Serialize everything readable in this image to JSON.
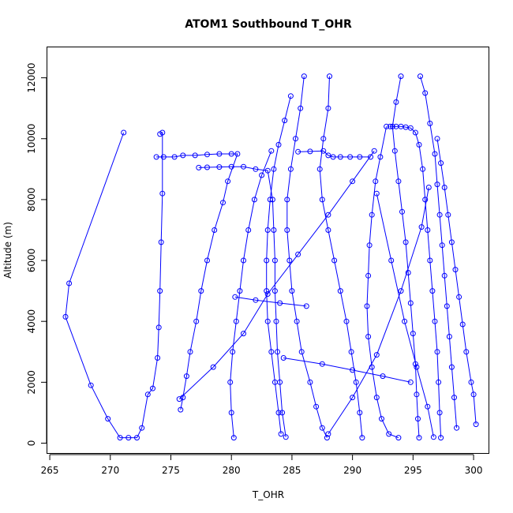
{
  "chart_data": {
    "type": "line",
    "title": "ATOM1 Southbound T_OHR",
    "xlabel": "T_OHR",
    "ylabel": "Altitude (m)",
    "xlim": [
      264.8,
      301.3
    ],
    "ylim": [
      -350,
      13000
    ],
    "x_ticks": [
      265,
      270,
      275,
      280,
      285,
      290,
      295,
      300
    ],
    "y_ticks": [
      0,
      2000,
      4000,
      6000,
      8000,
      10000,
      12000
    ],
    "grid": false,
    "legend": "none",
    "color": "#0000ff",
    "series": [
      {
        "points": [
          [
            271.1,
            10200
          ],
          [
            266.6,
            5250
          ],
          [
            266.3,
            4150
          ],
          [
            268.4,
            1900
          ],
          [
            269.8,
            800
          ],
          [
            270.8,
            180
          ],
          [
            271.5,
            180
          ],
          [
            272.2,
            180
          ],
          [
            272.6,
            500
          ],
          [
            273.1,
            1600
          ],
          [
            273.5,
            1800
          ],
          [
            273.9,
            2800
          ],
          [
            274.0,
            3800
          ],
          [
            274.1,
            5000
          ],
          [
            274.2,
            6600
          ],
          [
            274.3,
            8200
          ],
          [
            274.3,
            10200
          ],
          [
            274.1,
            10150
          ]
        ]
      },
      {
        "points": [
          [
            273.8,
            9400
          ],
          [
            274.4,
            9400
          ],
          [
            275.3,
            9400
          ],
          [
            276.0,
            9450
          ],
          [
            277.0,
            9450
          ],
          [
            278.0,
            9480
          ],
          [
            279.0,
            9500
          ],
          [
            280.0,
            9500
          ],
          [
            280.5,
            9500
          ],
          [
            279.7,
            8600
          ],
          [
            279.3,
            7900
          ],
          [
            278.6,
            7000
          ],
          [
            278.0,
            6000
          ],
          [
            277.5,
            5000
          ],
          [
            277.1,
            4000
          ],
          [
            276.6,
            3000
          ],
          [
            276.3,
            2200
          ],
          [
            276.0,
            1500
          ],
          [
            275.8,
            1100
          ]
        ]
      },
      {
        "points": [
          [
            277.3,
            9050
          ],
          [
            278.0,
            9060
          ],
          [
            279.0,
            9070
          ],
          [
            280.0,
            9080
          ],
          [
            281.0,
            9080
          ],
          [
            282.0,
            9000
          ],
          [
            283.0,
            8950
          ],
          [
            283.4,
            8000
          ],
          [
            283.5,
            7000
          ],
          [
            283.6,
            6000
          ],
          [
            283.6,
            5000
          ],
          [
            283.7,
            4000
          ],
          [
            283.8,
            3000
          ],
          [
            284.0,
            2000
          ],
          [
            284.2,
            1000
          ],
          [
            284.5,
            200
          ]
        ]
      },
      {
        "points": [
          [
            286.0,
            12050
          ],
          [
            285.7,
            11000
          ],
          [
            285.3,
            10000
          ],
          [
            284.9,
            9000
          ],
          [
            284.6,
            8000
          ],
          [
            284.6,
            7000
          ],
          [
            284.8,
            6000
          ],
          [
            285.0,
            5000
          ],
          [
            285.4,
            4000
          ],
          [
            285.8,
            3000
          ],
          [
            286.5,
            2000
          ],
          [
            287.0,
            1200
          ],
          [
            287.5,
            500
          ],
          [
            287.9,
            180
          ]
        ]
      },
      {
        "points": [
          [
            288.1,
            12050
          ],
          [
            288.0,
            11000
          ],
          [
            287.6,
            10000
          ],
          [
            287.3,
            9000
          ],
          [
            287.5,
            8000
          ],
          [
            288.0,
            7000
          ],
          [
            288.5,
            6000
          ],
          [
            289.0,
            5000
          ],
          [
            289.5,
            4000
          ],
          [
            289.9,
            3000
          ],
          [
            290.3,
            2000
          ],
          [
            290.6,
            1000
          ],
          [
            290.8,
            180
          ]
        ]
      },
      {
        "points": [
          [
            291.5,
            9400
          ],
          [
            290.6,
            9400
          ],
          [
            289.8,
            9400
          ],
          [
            289.0,
            9400
          ],
          [
            288.4,
            9400
          ],
          [
            288.0,
            9450
          ],
          [
            287.6,
            9600
          ],
          [
            286.5,
            9580
          ],
          [
            285.5,
            9570
          ]
        ]
      },
      {
        "points": [
          [
            292.8,
            10400
          ],
          [
            292.3,
            9400
          ],
          [
            291.9,
            8600
          ],
          [
            291.6,
            7500
          ],
          [
            291.4,
            6500
          ],
          [
            291.3,
            5500
          ],
          [
            291.2,
            4500
          ],
          [
            291.3,
            3500
          ],
          [
            291.6,
            2500
          ],
          [
            292.0,
            1500
          ],
          [
            292.4,
            800
          ],
          [
            293.0,
            300
          ],
          [
            293.8,
            180
          ]
        ]
      },
      {
        "points": [
          [
            294.0,
            12050
          ],
          [
            293.6,
            11200
          ],
          [
            293.3,
            10400
          ],
          [
            293.5,
            9600
          ],
          [
            293.8,
            8600
          ],
          [
            294.1,
            7600
          ],
          [
            294.4,
            6600
          ],
          [
            294.6,
            5600
          ],
          [
            294.8,
            4600
          ],
          [
            295.0,
            3600
          ],
          [
            295.2,
            2600
          ],
          [
            295.3,
            1600
          ],
          [
            295.4,
            800
          ],
          [
            295.5,
            180
          ]
        ]
      },
      {
        "points": [
          [
            293.1,
            10400
          ],
          [
            293.6,
            10400
          ],
          [
            294.0,
            10400
          ],
          [
            294.4,
            10380
          ],
          [
            294.8,
            10350
          ],
          [
            295.2,
            10200
          ],
          [
            295.5,
            9800
          ],
          [
            295.8,
            9000
          ],
          [
            296.0,
            8000
          ],
          [
            296.2,
            7000
          ],
          [
            296.4,
            6000
          ],
          [
            296.6,
            5000
          ],
          [
            296.8,
            4000
          ],
          [
            297.0,
            3000
          ],
          [
            297.1,
            2000
          ],
          [
            297.2,
            1000
          ],
          [
            297.3,
            180
          ]
        ]
      },
      {
        "points": [
          [
            295.6,
            12050
          ],
          [
            296.0,
            11500
          ],
          [
            296.4,
            10500
          ],
          [
            296.8,
            9500
          ],
          [
            297.0,
            8500
          ],
          [
            297.2,
            7500
          ],
          [
            297.4,
            6500
          ],
          [
            297.6,
            5500
          ],
          [
            297.8,
            4500
          ],
          [
            298.0,
            3500
          ],
          [
            298.2,
            2500
          ],
          [
            298.4,
            1500
          ],
          [
            298.6,
            500
          ]
        ]
      },
      {
        "points": [
          [
            297.0,
            10000
          ],
          [
            297.3,
            9200
          ],
          [
            297.6,
            8400
          ],
          [
            297.9,
            7500
          ],
          [
            298.2,
            6600
          ],
          [
            298.5,
            5700
          ],
          [
            298.8,
            4800
          ],
          [
            299.1,
            3900
          ],
          [
            299.4,
            3000
          ],
          [
            299.8,
            2000
          ],
          [
            300.0,
            1600
          ],
          [
            300.2,
            620
          ]
        ]
      },
      {
        "points": [
          [
            283.3,
            9600
          ],
          [
            282.5,
            8800
          ],
          [
            281.9,
            8000
          ],
          [
            281.4,
            7000
          ],
          [
            281.0,
            6000
          ],
          [
            280.7,
            5000
          ],
          [
            280.4,
            4000
          ],
          [
            280.1,
            3000
          ],
          [
            279.9,
            2000
          ],
          [
            280.0,
            1000
          ],
          [
            280.2,
            180
          ]
        ]
      },
      {
        "points": [
          [
            284.9,
            11400
          ],
          [
            284.4,
            10600
          ],
          [
            283.9,
            9800
          ],
          [
            283.5,
            9000
          ],
          [
            283.2,
            8000
          ],
          [
            283.0,
            7000
          ],
          [
            282.9,
            6000
          ],
          [
            282.9,
            5000
          ],
          [
            283.0,
            4000
          ],
          [
            283.3,
            3000
          ],
          [
            283.6,
            2000
          ],
          [
            283.9,
            1000
          ],
          [
            284.1,
            300
          ]
        ]
      },
      {
        "points": [
          [
            275.7,
            1450
          ],
          [
            278.5,
            2500
          ],
          [
            281.0,
            3600
          ],
          [
            283.0,
            4900
          ],
          [
            285.5,
            6200
          ],
          [
            288.0,
            7500
          ],
          [
            290.0,
            8600
          ],
          [
            291.8,
            9600
          ]
        ]
      },
      {
        "points": [
          [
            284.3,
            2800
          ],
          [
            287.5,
            2600
          ],
          [
            290.0,
            2400
          ],
          [
            292.5,
            2200
          ],
          [
            294.8,
            2000
          ]
        ]
      },
      {
        "points": [
          [
            280.3,
            4800
          ],
          [
            282.0,
            4700
          ],
          [
            284.0,
            4600
          ],
          [
            286.2,
            4500
          ]
        ]
      },
      {
        "points": [
          [
            288.0,
            300
          ],
          [
            290.0,
            1500
          ],
          [
            292.0,
            2900
          ],
          [
            294.0,
            5000
          ],
          [
            295.7,
            7100
          ],
          [
            296.3,
            8400
          ]
        ]
      },
      {
        "points": [
          [
            292.0,
            8200
          ],
          [
            293.2,
            6000
          ],
          [
            294.3,
            4000
          ],
          [
            295.3,
            2500
          ],
          [
            296.2,
            1200
          ],
          [
            296.7,
            200
          ]
        ]
      }
    ]
  }
}
